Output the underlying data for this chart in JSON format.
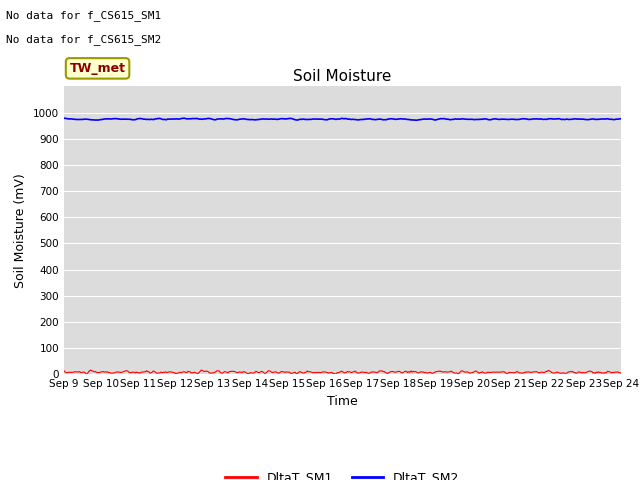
{
  "title": "Soil Moisture",
  "ylabel": "Soil Moisture (mV)",
  "xlabel": "Time",
  "annotation_line1": "No data for f_CS615_SM1",
  "annotation_line2": "No data for f_CS615_SM2",
  "legend_box_label": "TW_met",
  "x_tick_labels": [
    "Sep 9",
    "Sep 10",
    "Sep 11",
    "Sep 12",
    "Sep 13",
    "Sep 14",
    "Sep 15",
    "Sep 16",
    "Sep 17",
    "Sep 18",
    "Sep 19",
    "Sep 20",
    "Sep 21",
    "Sep 22",
    "Sep 23",
    "Sep 24"
  ],
  "ylim": [
    0,
    1100
  ],
  "yticks": [
    0,
    100,
    200,
    300,
    400,
    500,
    600,
    700,
    800,
    900,
    1000
  ],
  "sm1_color": "#ff0000",
  "sm2_color": "#0000ff",
  "sm1_label": "DltaT_SM1",
  "sm2_label": "DltaT_SM2",
  "background_color": "#dcdcdc",
  "n_points": 500,
  "sm1_base": 8,
  "sm1_noise": 5,
  "sm2_base": 975,
  "sm2_noise": 3
}
